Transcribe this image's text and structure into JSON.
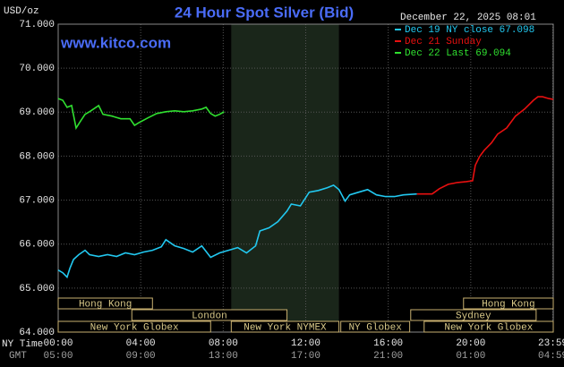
{
  "chart_data": {
    "type": "line",
    "title": "24 Hour Spot Silver (Bid)",
    "y_label": "USD/oz",
    "site": "www.kitco.com",
    "timestamp": "December 22, 2025 08:01",
    "x_row_label": "NY Time",
    "x2_row_label": "GMT",
    "xlim": [
      0,
      24
    ],
    "ylim": [
      64,
      71
    ],
    "grid": true,
    "xticks": [
      {
        "value": 0,
        "label": "00:00"
      },
      {
        "value": 4,
        "label": "04:00"
      },
      {
        "value": 8,
        "label": "08:00"
      },
      {
        "value": 12,
        "label": "12:00"
      },
      {
        "value": 16,
        "label": "16:00"
      },
      {
        "value": 20,
        "label": "20:00"
      },
      {
        "value": 23.98,
        "label": "23:59"
      }
    ],
    "x2ticks": [
      {
        "value": 0,
        "label": "05:00"
      },
      {
        "value": 4,
        "label": "09:00"
      },
      {
        "value": 8,
        "label": "13:00"
      },
      {
        "value": 12,
        "label": "17:00"
      },
      {
        "value": 16,
        "label": "21:00"
      },
      {
        "value": 20,
        "label": "01:00"
      },
      {
        "value": 23.98,
        "label": "04:59"
      }
    ],
    "yticks": [
      {
        "value": 64,
        "label": "64.000"
      },
      {
        "value": 65,
        "label": "65.000"
      },
      {
        "value": 66,
        "label": "66.000"
      },
      {
        "value": 67,
        "label": "67.000"
      },
      {
        "value": 68,
        "label": "68.000"
      },
      {
        "value": 69,
        "label": "69.000"
      },
      {
        "value": 70,
        "label": "70.000"
      },
      {
        "value": 71,
        "label": "71.000"
      }
    ],
    "series": [
      {
        "name": "Dec 19 NY close 67.098",
        "color": "#22c8f0",
        "x": [
          0,
          0.22,
          0.43,
          0.57,
          0.74,
          1.0,
          1.3,
          1.52,
          1.96,
          2.39,
          2.83,
          3.26,
          3.7,
          4.13,
          4.57,
          5.0,
          5.22,
          5.65,
          6.09,
          6.52,
          6.96,
          7.39,
          7.83,
          8.26,
          8.7,
          9.13,
          9.57,
          9.78,
          10.22,
          10.65,
          11.09,
          11.3,
          11.74,
          12.17,
          12.61,
          13.04,
          13.35,
          13.61,
          13.91,
          14.13,
          14.57,
          15.0,
          15.43,
          15.87,
          16.3,
          16.74,
          17.39
        ],
        "values": [
          65.41,
          65.35,
          65.25,
          65.45,
          65.65,
          65.76,
          65.86,
          65.76,
          65.72,
          65.76,
          65.72,
          65.8,
          65.76,
          65.82,
          65.86,
          65.94,
          66.1,
          65.96,
          65.9,
          65.82,
          65.96,
          65.7,
          65.8,
          65.86,
          65.92,
          65.8,
          65.96,
          66.3,
          66.37,
          66.51,
          66.75,
          66.91,
          66.87,
          67.18,
          67.22,
          67.28,
          67.34,
          67.24,
          66.98,
          67.12,
          67.18,
          67.24,
          67.12,
          67.08,
          67.08,
          67.12,
          67.14
        ]
      },
      {
        "name": "Dec 21 Sunday",
        "color": "#e81010",
        "x": [
          17.39,
          18.13,
          18.48,
          18.91,
          19.35,
          19.78,
          20.09,
          20.22,
          20.43,
          20.65,
          21.0,
          21.3,
          21.74,
          22.17,
          22.61,
          23.04,
          23.26,
          23.48,
          23.78,
          24.0
        ],
        "values": [
          67.14,
          67.14,
          67.26,
          67.36,
          67.4,
          67.42,
          67.44,
          67.79,
          67.99,
          68.13,
          68.3,
          68.5,
          68.64,
          68.91,
          69.07,
          69.27,
          69.35,
          69.35,
          69.31,
          69.29
        ]
      },
      {
        "name": "Dec 22 Last 69.094",
        "color": "#30e030",
        "x": [
          0,
          0.22,
          0.43,
          0.65,
          0.87,
          1.09,
          1.3,
          1.52,
          1.96,
          2.17,
          2.61,
          3.04,
          3.48,
          3.7,
          3.91,
          4.35,
          4.78,
          5.22,
          5.65,
          6.09,
          6.52,
          6.96,
          7.17,
          7.39,
          7.61,
          7.83,
          8.04
        ],
        "values": [
          69.31,
          69.27,
          69.11,
          69.15,
          68.64,
          68.8,
          68.95,
          69.01,
          69.15,
          68.95,
          68.91,
          68.85,
          68.85,
          68.7,
          68.76,
          68.87,
          68.97,
          69.01,
          69.03,
          69.01,
          69.03,
          69.07,
          69.11,
          68.97,
          68.91,
          68.95,
          69.01
        ]
      }
    ],
    "sessions": [
      [
        {
          "label": "Hong Kong",
          "start": 0,
          "end": 4.57
        },
        {
          "label": "Hong Kong",
          "start": 19.65,
          "end": 24
        }
      ],
      [
        {
          "label": "London",
          "start": 3.57,
          "end": 11.09
        },
        {
          "label": "Sydney",
          "start": 17.09,
          "end": 23.17
        }
      ],
      [
        {
          "label": "New York Globex",
          "start": 0,
          "end": 7.39
        },
        {
          "label": "New York NYMEX",
          "start": 8.39,
          "end": 13.61
        },
        {
          "label": "NY Globex",
          "start": 13.7,
          "end": 17.04
        },
        {
          "label": "New York Globex",
          "start": 17.74,
          "end": 24
        }
      ]
    ]
  }
}
